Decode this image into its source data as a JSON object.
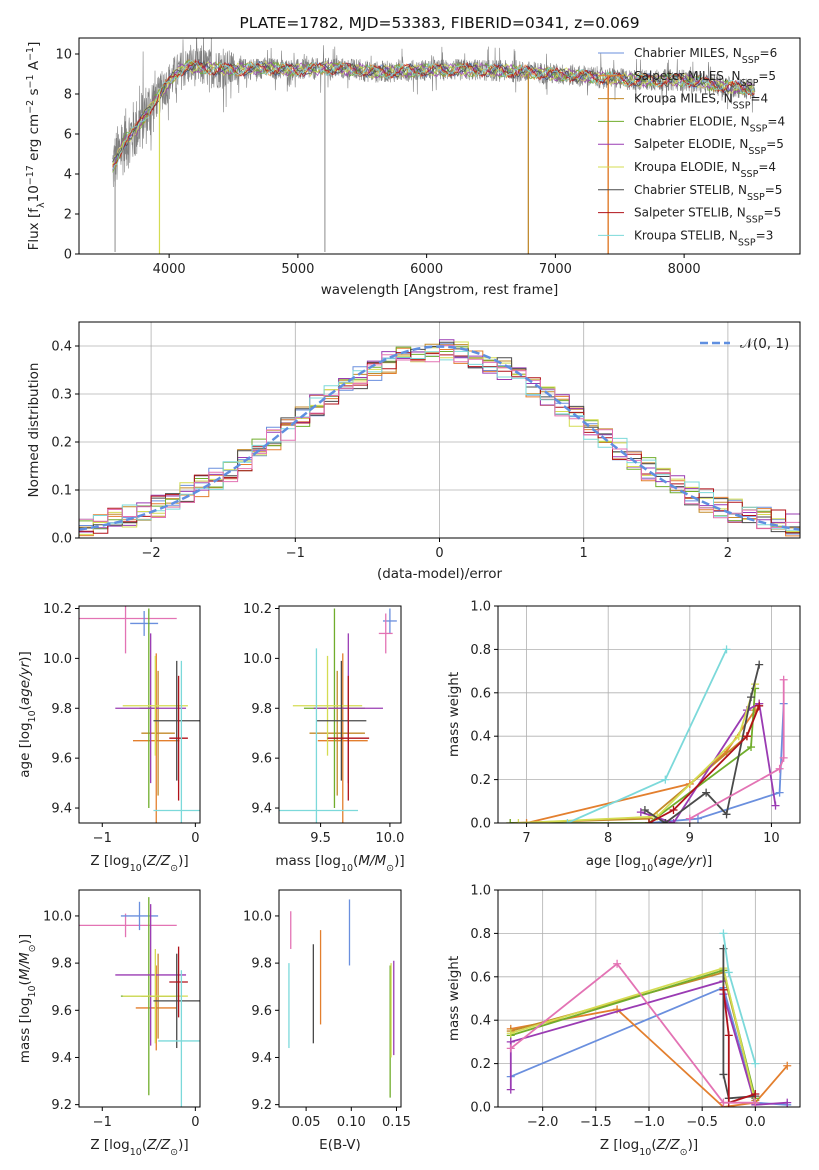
{
  "colors": {
    "Chabrier MILES": "#6a8fde",
    "Salpeter MILES": "#e37f2e",
    "Kroupa MILES": "#c38a2a",
    "Chabrier ELODIE": "#70ad2c",
    "Salpeter ELODIE": "#9a3bb3",
    "Kroupa ELODIE": "#d4dc52",
    "Chabrier STELIB": "#4a4a4a",
    "Salpeter STELIB": "#b0121a",
    "Kroupa STELIB": "#7cd9da",
    "extra": "#e373b4",
    "gauss": "#5f8fe0",
    "data": "#7f7f7f"
  },
  "chart_data": [
    {
      "id": "spectrum",
      "type": "line",
      "title": "PLATE=1782, MJD=53383, FIBERID=0341, z=0.069",
      "xlabel": "wavelength [Angstrom, rest frame]",
      "ylabel": "Flux [f_λ10^-17 erg cm^-2 s^-1 A^-1]",
      "xlim": [
        3300,
        8900
      ],
      "ylim": [
        0,
        10.8
      ],
      "xticks": [
        "4000",
        "5000",
        "6000",
        "7000",
        "8000"
      ],
      "yticks": [
        "0",
        "2",
        "4",
        "6",
        "8",
        "10"
      ],
      "grid": false,
      "legend": "right",
      "legend_entries": [
        {
          "name": "Chabrier MILES",
          "nssp": "6"
        },
        {
          "name": "Salpeter MILES",
          "nssp": "5"
        },
        {
          "name": "Kroupa MILES",
          "nssp": "4"
        },
        {
          "name": "Chabrier ELODIE",
          "nssp": "4"
        },
        {
          "name": "Salpeter ELODIE",
          "nssp": "5"
        },
        {
          "name": "Kroupa ELODIE",
          "nssp": "4"
        },
        {
          "name": "Chabrier STELIB",
          "nssp": "5"
        },
        {
          "name": "Salpeter STELIB",
          "nssp": "5"
        },
        {
          "name": "Kroupa STELIB",
          "nssp": "3"
        }
      ],
      "continuum_x": [
        3560,
        3650,
        3750,
        3850,
        3950,
        4050,
        4150,
        4300,
        4500,
        4700,
        5000,
        5300,
        5600,
        6000,
        6400,
        6800,
        7200,
        7600,
        8000,
        8300,
        8450,
        8550
      ],
      "continuum_y": [
        4.3,
        5.6,
        6.3,
        7.3,
        8.2,
        9.0,
        9.4,
        9.3,
        9.2,
        9.3,
        9.2,
        9.3,
        9.1,
        9.2,
        9.2,
        9.1,
        8.9,
        8.7,
        8.7,
        8.4,
        8.3,
        8.2
      ]
    },
    {
      "id": "residuals",
      "type": "histogram",
      "xlabel": "(data-model)/error",
      "ylabel": "Normed distribution",
      "xlim": [
        -2.5,
        2.5
      ],
      "ylim": [
        0,
        0.45
      ],
      "xticks": [
        "−2",
        "−1",
        "0",
        "1",
        "2"
      ],
      "yticks": [
        "0.0",
        "0.1",
        "0.2",
        "0.3",
        "0.4"
      ],
      "grid": true,
      "legend": "top-right",
      "legend_label": "𝒩(0, 1)",
      "bin_width": 0.1
    },
    {
      "id": "age_vs_Z",
      "type": "errorbar",
      "xlabel": "Z [log10(Z/Z⊙)]",
      "ylabel": "age  [log10(age/yr)]",
      "xlim": [
        -1.25,
        0.05
      ],
      "ylim": [
        9.34,
        10.21
      ],
      "xticks": [
        "−1",
        "0"
      ],
      "yticks": [
        "9.4",
        "9.6",
        "9.8",
        "10.0",
        "10.2"
      ],
      "points": [
        {
          "series": "extra",
          "x": -0.75,
          "xerr": 0.55,
          "y": 10.16,
          "yerr": 0.14
        },
        {
          "series": "Chabrier MILES",
          "x": -0.55,
          "xerr": 0.15,
          "y": 10.14,
          "yerr": 0.05
        },
        {
          "series": "Salpeter MILES",
          "x": -0.42,
          "xerr": 0.25,
          "y": 9.67,
          "yerr": 0.35
        },
        {
          "series": "Kroupa MILES",
          "x": -0.4,
          "xerr": 0.18,
          "y": 9.7,
          "yerr": 0.25
        },
        {
          "series": "Chabrier ELODIE",
          "x": -0.5,
          "xerr": 0.1,
          "y": 9.8,
          "yerr": 0.4
        },
        {
          "series": "Salpeter ELODIE",
          "x": -0.48,
          "xerr": 0.38,
          "y": 9.8,
          "yerr": 0.3
        },
        {
          "series": "Kroupa ELODIE",
          "x": -0.43,
          "xerr": 0.35,
          "y": 9.81,
          "yerr": 0.2
        },
        {
          "series": "Chabrier STELIB",
          "x": -0.2,
          "xerr": 0.25,
          "y": 9.75,
          "yerr": 0.24
        },
        {
          "series": "Salpeter STELIB",
          "x": -0.18,
          "xerr": 0.1,
          "y": 9.68,
          "yerr": 0.25
        },
        {
          "series": "Kroupa STELIB",
          "x": -0.15,
          "xerr": 0.3,
          "y": 9.39,
          "yerr": 0.6
        }
      ]
    },
    {
      "id": "age_vs_mass",
      "type": "errorbar",
      "xlabel": "mass [log10(M/M⊙)]",
      "ylabel": "",
      "xlim": [
        9.2,
        10.08
      ],
      "ylim": [
        9.34,
        10.21
      ],
      "xticks": [
        "9.5",
        "10.0"
      ],
      "yticks": [
        "9.4",
        "9.6",
        "9.8",
        "10.0",
        "10.2"
      ],
      "points": [
        {
          "series": "Chabrier MILES",
          "x": 10.0,
          "xerr": 0.05,
          "y": 10.15,
          "yerr": 0.05
        },
        {
          "series": "extra",
          "x": 9.97,
          "xerr": 0.05,
          "y": 10.1,
          "yerr": 0.08
        },
        {
          "series": "Salpeter MILES",
          "x": 9.66,
          "xerr": 0.18,
          "y": 9.67,
          "yerr": 0.35
        },
        {
          "series": "Kroupa MILES",
          "x": 9.62,
          "xerr": 0.2,
          "y": 9.7,
          "yerr": 0.25
        },
        {
          "series": "Chabrier ELODIE",
          "x": 9.6,
          "xerr": 0.22,
          "y": 9.8,
          "yerr": 0.4
        },
        {
          "series": "Salpeter ELODIE",
          "x": 9.7,
          "xerr": 0.25,
          "y": 9.8,
          "yerr": 0.3
        },
        {
          "series": "Kroupa ELODIE",
          "x": 9.55,
          "xerr": 0.25,
          "y": 9.81,
          "yerr": 0.2
        },
        {
          "series": "Chabrier STELIB",
          "x": 9.65,
          "xerr": 0.18,
          "y": 9.75,
          "yerr": 0.24
        },
        {
          "series": "Salpeter STELIB",
          "x": 9.7,
          "xerr": 0.15,
          "y": 9.68,
          "yerr": 0.25
        },
        {
          "series": "Kroupa STELIB",
          "x": 9.47,
          "xerr": 0.3,
          "y": 9.39,
          "yerr": 0.65
        }
      ]
    },
    {
      "id": "massweight_vs_age",
      "type": "line",
      "xlabel": "age  [log10(age/yr)]",
      "ylabel": "mass weight",
      "xlim": [
        6.65,
        10.35
      ],
      "ylim": [
        0,
        1.0
      ],
      "xticks": [
        "7",
        "8",
        "9",
        "10"
      ],
      "yticks": [
        "0.0",
        "0.2",
        "0.4",
        "0.6",
        "0.8",
        "1.0"
      ],
      "grid": true,
      "series": [
        {
          "series": "Chabrier MILES",
          "x": [
            8.5,
            9.1,
            10.1,
            10.15
          ],
          "y": [
            0.0,
            0.02,
            0.14,
            0.55
          ]
        },
        {
          "series": "Salpeter MILES",
          "x": [
            7.0,
            9.0,
            9.45,
            9.8
          ],
          "y": [
            0.0,
            0.18,
            0.33,
            0.52
          ]
        },
        {
          "series": "Kroupa MILES",
          "x": [
            6.8,
            8.5,
            9.7,
            9.85
          ],
          "y": [
            0.0,
            0.02,
            0.4,
            0.55
          ]
        },
        {
          "series": "Chabrier ELODIE",
          "x": [
            6.8,
            8.5,
            9.75,
            9.8
          ],
          "y": [
            0.0,
            0.0,
            0.35,
            0.62
          ]
        },
        {
          "series": "Salpeter ELODIE",
          "x": [
            8.4,
            8.8,
            9.7,
            9.85,
            10.05
          ],
          "y": [
            0.05,
            0.0,
            0.52,
            0.55,
            0.08
          ]
        },
        {
          "series": "Kroupa ELODIE",
          "x": [
            6.9,
            8.6,
            9.6,
            9.8
          ],
          "y": [
            0.0,
            0.03,
            0.4,
            0.64
          ]
        },
        {
          "series": "Chabrier STELIB",
          "x": [
            8.45,
            8.7,
            9.2,
            9.45,
            9.75,
            9.85
          ],
          "y": [
            0.06,
            0.0,
            0.14,
            0.04,
            0.58,
            0.73
          ]
        },
        {
          "series": "Salpeter STELIB",
          "x": [
            8.5,
            8.8,
            9.7,
            9.85
          ],
          "y": [
            0.0,
            0.06,
            0.4,
            0.54
          ]
        },
        {
          "series": "Kroupa STELIB",
          "x": [
            7.5,
            8.7,
            9.45
          ],
          "y": [
            0.0,
            0.2,
            0.8
          ]
        },
        {
          "series": "extra",
          "x": [
            9.0,
            10.1,
            10.15,
            10.15
          ],
          "y": [
            0.02,
            0.25,
            0.3,
            0.66
          ]
        }
      ]
    },
    {
      "id": "mass_vs_Z",
      "type": "errorbar",
      "xlabel": "Z [log10(Z/Z⊙)]",
      "ylabel": "mass [log10(M/M⊙)]",
      "xlim": [
        -1.25,
        0.05
      ],
      "ylim": [
        9.19,
        10.11
      ],
      "xticks": [
        "−1",
        "0"
      ],
      "yticks": [
        "9.2",
        "9.4",
        "9.6",
        "9.8",
        "10.0"
      ],
      "points": [
        {
          "series": "extra",
          "x": -0.75,
          "xerr": 0.55,
          "y": 9.96,
          "yerr": 0.05
        },
        {
          "series": "Chabrier MILES",
          "x": -0.6,
          "xerr": 0.2,
          "y": 10.0,
          "yerr": 0.06
        },
        {
          "series": "Salpeter MILES",
          "x": -0.42,
          "xerr": 0.22,
          "y": 9.61,
          "yerr": 0.18
        },
        {
          "series": "Kroupa MILES",
          "x": -0.4,
          "xerr": 0.18,
          "y": 9.66,
          "yerr": 0.18
        },
        {
          "series": "Chabrier ELODIE",
          "x": -0.5,
          "xerr": 0.3,
          "y": 9.66,
          "yerr": 0.42
        },
        {
          "series": "Salpeter ELODIE",
          "x": -0.48,
          "xerr": 0.38,
          "y": 9.75,
          "yerr": 0.3
        },
        {
          "series": "Kroupa ELODIE",
          "x": -0.43,
          "xerr": 0.35,
          "y": 9.66,
          "yerr": 0.2
        },
        {
          "series": "Chabrier STELIB",
          "x": -0.2,
          "xerr": 0.25,
          "y": 9.64,
          "yerr": 0.2
        },
        {
          "series": "Salpeter STELIB",
          "x": -0.18,
          "xerr": 0.1,
          "y": 9.72,
          "yerr": 0.15
        },
        {
          "series": "Kroupa STELIB",
          "x": -0.15,
          "xerr": 0.25,
          "y": 9.47,
          "yerr": 0.3
        }
      ]
    },
    {
      "id": "mass_vs_EBV",
      "type": "errorbar",
      "xlabel": "E(B-V)",
      "ylabel": "",
      "xlim": [
        0.02,
        0.155
      ],
      "ylim": [
        9.19,
        10.11
      ],
      "xticks": [
        "0.05",
        "0.10",
        "0.15"
      ],
      "yticks": [
        "9.2",
        "9.4",
        "9.6",
        "9.8",
        "10.0"
      ],
      "points": [
        {
          "series": "Kroupa STELIB",
          "x": 0.031,
          "y": 9.62,
          "yerr": 0.18
        },
        {
          "series": "extra",
          "x": 0.033,
          "y": 9.94,
          "yerr": 0.08
        },
        {
          "series": "Chabrier STELIB",
          "x": 0.058,
          "y": 9.67,
          "yerr": 0.21
        },
        {
          "series": "Salpeter MILES",
          "x": 0.066,
          "y": 9.74,
          "yerr": 0.2
        },
        {
          "series": "Chabrier MILES",
          "x": 0.098,
          "y": 9.93,
          "yerr": 0.14
        },
        {
          "series": "Chabrier ELODIE",
          "x": 0.143,
          "y": 9.51,
          "yerr": 0.28
        },
        {
          "series": "Kroupa ELODIE",
          "x": 0.144,
          "y": 9.6,
          "yerr": 0.2
        },
        {
          "series": "Salpeter ELODIE",
          "x": 0.147,
          "y": 9.61,
          "yerr": 0.2
        }
      ]
    },
    {
      "id": "massweight_vs_Z",
      "type": "line",
      "xlabel": "Z [log10(Z/Z⊙)]",
      "ylabel": "mass weight",
      "xlim": [
        -2.42,
        0.42
      ],
      "ylim": [
        0,
        1.0
      ],
      "xticks": [
        "−2.0",
        "−1.5",
        "−1.0",
        "−0.5",
        "0.0"
      ],
      "yticks": [
        "0.0",
        "0.2",
        "0.4",
        "0.6",
        "0.8",
        "1.0"
      ],
      "grid": true,
      "series": [
        {
          "series": "Chabrier MILES",
          "x": [
            -2.3,
            -0.3,
            0.0,
            0.3
          ],
          "y": [
            0.14,
            0.55,
            0.02,
            0.01
          ]
        },
        {
          "series": "Salpeter MILES",
          "x": [
            -2.3,
            -1.3,
            -0.3,
            0.0,
            0.3
          ],
          "y": [
            0.36,
            0.45,
            0.0,
            0.02,
            0.19
          ]
        },
        {
          "series": "Kroupa MILES",
          "x": [
            -2.3,
            -0.3,
            0.0
          ],
          "y": [
            0.35,
            0.62,
            0.03
          ]
        },
        {
          "series": "Chabrier ELODIE",
          "x": [
            -2.3,
            -0.3,
            0.0
          ],
          "y": [
            0.33,
            0.63,
            0.04
          ]
        },
        {
          "series": "Salpeter ELODIE",
          "x": [
            -2.3,
            -2.3,
            -0.3,
            -0.3,
            0.0,
            0.3
          ],
          "y": [
            0.08,
            0.3,
            0.58,
            0.52,
            0.01,
            0.02
          ]
        },
        {
          "series": "Kroupa ELODIE",
          "x": [
            -2.3,
            -0.3,
            0.0
          ],
          "y": [
            0.34,
            0.64,
            0.02
          ]
        },
        {
          "series": "Chabrier STELIB",
          "x": [
            -0.3,
            -0.3,
            -0.25,
            0.0
          ],
          "y": [
            0.73,
            0.15,
            0.04,
            0.05
          ]
        },
        {
          "series": "Salpeter STELIB",
          "x": [
            -0.3,
            -0.25,
            -0.25,
            0.0
          ],
          "y": [
            0.54,
            0.33,
            0.02,
            0.06
          ]
        },
        {
          "series": "Kroupa STELIB",
          "x": [
            -0.3,
            -0.25,
            0.0
          ],
          "y": [
            0.8,
            0.62,
            0.2
          ]
        },
        {
          "series": "extra",
          "x": [
            -2.3,
            -1.3,
            -0.3,
            0.0
          ],
          "y": [
            0.27,
            0.66,
            0.02,
            0.02
          ]
        }
      ]
    }
  ]
}
